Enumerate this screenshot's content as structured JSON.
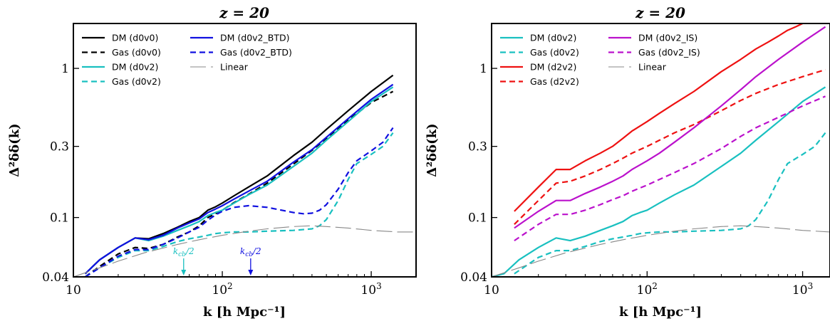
{
  "chart_data": [
    {
      "type": "line",
      "title": "z = 20",
      "xlabel": "k [h Mpc⁻¹]",
      "ylabel": "Δ²δδ(k)",
      "xscale": "log",
      "yscale": "log",
      "xlim": [
        10,
        2000
      ],
      "ylim": [
        0.04,
        2.0
      ],
      "xticks": [
        {
          "value": 10,
          "label": "10"
        },
        {
          "value": 100,
          "label": "10²"
        },
        {
          "value": 1000,
          "label": "10³"
        }
      ],
      "yticks": [
        {
          "value": 0.04,
          "label": "0.04"
        },
        {
          "value": 0.1,
          "label": "0.1"
        },
        {
          "value": 0.3,
          "label": "0.3"
        },
        {
          "value": 1,
          "label": "1"
        }
      ],
      "legend_position": "top-left, two columns",
      "series": [
        {
          "name": "DM (d0v0)",
          "color": "#000000",
          "dash": "solid",
          "x": [
            12,
            15,
            20,
            26,
            32,
            40,
            50,
            60,
            70,
            80,
            90,
            100,
            120,
            150,
            200,
            300,
            400,
            500,
            700,
            1000,
            1400
          ],
          "y": [
            0.042,
            0.052,
            0.063,
            0.073,
            0.072,
            0.078,
            0.086,
            0.094,
            0.1,
            0.112,
            0.118,
            0.125,
            0.14,
            0.16,
            0.19,
            0.26,
            0.32,
            0.39,
            0.52,
            0.7,
            0.9
          ]
        },
        {
          "name": "Gas (d0v0)",
          "color": "#000000",
          "dash": "dashed",
          "x": [
            12,
            15,
            20,
            26,
            32,
            40,
            50,
            60,
            70,
            80,
            90,
            100,
            120,
            150,
            200,
            300,
            400,
            500,
            700,
            1000,
            1400
          ],
          "y": [
            0.04,
            0.047,
            0.057,
            0.063,
            0.062,
            0.066,
            0.074,
            0.08,
            0.088,
            0.1,
            0.106,
            0.112,
            0.126,
            0.143,
            0.17,
            0.228,
            0.282,
            0.34,
            0.45,
            0.59,
            0.7
          ]
        },
        {
          "name": "DM (d0v2)",
          "color": "#19c0c0",
          "dash": "solid",
          "x": [
            12,
            15,
            20,
            26,
            32,
            40,
            50,
            60,
            70,
            80,
            90,
            100,
            120,
            150,
            200,
            300,
            400,
            500,
            700,
            1000,
            1400
          ],
          "y": [
            0.042,
            0.052,
            0.063,
            0.073,
            0.07,
            0.075,
            0.082,
            0.088,
            0.094,
            0.103,
            0.108,
            0.112,
            0.125,
            0.142,
            0.165,
            0.22,
            0.27,
            0.33,
            0.44,
            0.6,
            0.75
          ]
        },
        {
          "name": "Gas (d0v2)",
          "color": "#19c0c0",
          "dash": "dashed",
          "x": [
            12,
            15,
            20,
            26,
            32,
            40,
            50,
            60,
            70,
            80,
            90,
            100,
            120,
            150,
            200,
            300,
            400,
            450,
            500,
            600,
            700,
            800,
            1000,
            1200,
            1400
          ],
          "y": [
            0.04,
            0.046,
            0.054,
            0.06,
            0.06,
            0.064,
            0.069,
            0.072,
            0.074,
            0.076,
            0.078,
            0.079,
            0.08,
            0.08,
            0.081,
            0.082,
            0.084,
            0.088,
            0.097,
            0.13,
            0.18,
            0.23,
            0.265,
            0.3,
            0.37
          ]
        },
        {
          "name": "DM (d0v2_BTD)",
          "color": "#1010e0",
          "dash": "solid",
          "x": [
            12,
            15,
            20,
            26,
            32,
            40,
            50,
            60,
            70,
            80,
            90,
            100,
            120,
            150,
            200,
            300,
            400,
            500,
            700,
            1000,
            1400
          ],
          "y": [
            0.042,
            0.052,
            0.063,
            0.073,
            0.071,
            0.076,
            0.085,
            0.092,
            0.098,
            0.108,
            0.114,
            0.12,
            0.133,
            0.15,
            0.175,
            0.235,
            0.285,
            0.345,
            0.46,
            0.62,
            0.78
          ]
        },
        {
          "name": "Gas (d0v2_BTD)",
          "color": "#1010e0",
          "dash": "dashed",
          "x": [
            12,
            15,
            20,
            26,
            32,
            40,
            50,
            60,
            70,
            80,
            90,
            100,
            120,
            150,
            200,
            250,
            300,
            350,
            400,
            450,
            500,
            600,
            700,
            800,
            1000,
            1200,
            1400
          ],
          "y": [
            0.04,
            0.046,
            0.055,
            0.061,
            0.061,
            0.066,
            0.073,
            0.08,
            0.086,
            0.096,
            0.104,
            0.11,
            0.117,
            0.12,
            0.117,
            0.112,
            0.108,
            0.106,
            0.107,
            0.112,
            0.122,
            0.155,
            0.2,
            0.24,
            0.28,
            0.32,
            0.4
          ]
        },
        {
          "name": "Linear",
          "color": "#888888",
          "dash": "long-dash",
          "x": [
            10,
            15,
            20,
            30,
            50,
            70,
            100,
            150,
            200,
            300,
            400,
            500,
            700,
            1000,
            1500,
            2000
          ],
          "y": [
            0.04,
            0.046,
            0.051,
            0.058,
            0.066,
            0.071,
            0.076,
            0.081,
            0.084,
            0.087,
            0.088,
            0.087,
            0.085,
            0.082,
            0.08,
            0.08
          ]
        }
      ],
      "annotations": [
        {
          "text": "kcb/2",
          "x": 55,
          "color": "#19c0c0",
          "arrow": "down"
        },
        {
          "text": "kcb/2",
          "x": 155,
          "color": "#1010e0",
          "arrow": "down"
        }
      ]
    },
    {
      "type": "line",
      "title": "z = 20",
      "xlabel": "k [h Mpc⁻¹]",
      "ylabel": "Δ²δδ(k)",
      "xscale": "log",
      "yscale": "log",
      "xlim": [
        10,
        1500
      ],
      "ylim": [
        0.04,
        2.0
      ],
      "xticks": [
        {
          "value": 10,
          "label": "10"
        },
        {
          "value": 100,
          "label": "10²"
        },
        {
          "value": 1000,
          "label": "10³"
        }
      ],
      "yticks": [
        {
          "value": 0.04,
          "label": "0.04"
        },
        {
          "value": 0.1,
          "label": "0.1"
        },
        {
          "value": 0.3,
          "label": "0.3"
        },
        {
          "value": 1,
          "label": "1"
        }
      ],
      "legend_position": "top-left, two columns",
      "series": [
        {
          "name": "DM (d0v2)",
          "color": "#19c0c0",
          "dash": "solid",
          "x": [
            10,
            12,
            15,
            20,
            26,
            32,
            40,
            50,
            60,
            70,
            80,
            90,
            100,
            120,
            150,
            200,
            300,
            400,
            500,
            700,
            1000,
            1400
          ],
          "y": [
            0.04,
            0.042,
            0.052,
            0.063,
            0.073,
            0.07,
            0.075,
            0.082,
            0.088,
            0.094,
            0.103,
            0.108,
            0.112,
            0.125,
            0.142,
            0.165,
            0.22,
            0.27,
            0.33,
            0.44,
            0.6,
            0.75
          ]
        },
        {
          "name": "Gas (d0v2)",
          "color": "#19c0c0",
          "dash": "dashed",
          "x": [
            14,
            20,
            26,
            32,
            40,
            50,
            60,
            70,
            80,
            90,
            100,
            120,
            150,
            200,
            300,
            400,
            450,
            500,
            600,
            700,
            800,
            1000,
            1200,
            1400
          ],
          "y": [
            0.042,
            0.054,
            0.06,
            0.06,
            0.064,
            0.069,
            0.072,
            0.074,
            0.076,
            0.078,
            0.079,
            0.08,
            0.08,
            0.081,
            0.082,
            0.084,
            0.088,
            0.097,
            0.13,
            0.18,
            0.23,
            0.265,
            0.3,
            0.37
          ]
        },
        {
          "name": "DM (d2v2)",
          "color": "#ee1111",
          "dash": "solid",
          "x": [
            14,
            20,
            26,
            32,
            40,
            50,
            60,
            70,
            80,
            100,
            120,
            150,
            200,
            300,
            400,
            500,
            600,
            700,
            800,
            900,
            1000
          ],
          "y": [
            0.11,
            0.16,
            0.21,
            0.21,
            0.24,
            0.27,
            0.3,
            0.34,
            0.38,
            0.44,
            0.5,
            0.58,
            0.7,
            0.95,
            1.15,
            1.35,
            1.5,
            1.65,
            1.8,
            1.9,
            2.0
          ]
        },
        {
          "name": "Gas (d2v2)",
          "color": "#ee1111",
          "dash": "dashed",
          "x": [
            14,
            20,
            26,
            32,
            40,
            50,
            60,
            70,
            80,
            100,
            120,
            150,
            200,
            300,
            400,
            500,
            700,
            1000,
            1400
          ],
          "y": [
            0.09,
            0.13,
            0.17,
            0.175,
            0.19,
            0.21,
            0.23,
            0.25,
            0.27,
            0.3,
            0.33,
            0.37,
            0.42,
            0.52,
            0.61,
            0.68,
            0.78,
            0.88,
            0.98
          ]
        },
        {
          "name": "DM (d0v2_IS)",
          "color": "#bb11cc",
          "dash": "solid",
          "x": [
            14,
            20,
            26,
            32,
            40,
            50,
            60,
            70,
            80,
            100,
            120,
            150,
            200,
            300,
            400,
            500,
            700,
            1000,
            1400
          ],
          "y": [
            0.085,
            0.11,
            0.13,
            0.13,
            0.145,
            0.16,
            0.175,
            0.19,
            0.21,
            0.24,
            0.27,
            0.32,
            0.4,
            0.56,
            0.72,
            0.88,
            1.15,
            1.5,
            1.9
          ]
        },
        {
          "name": "Gas (d0v2_IS)",
          "color": "#bb11cc",
          "dash": "dashed",
          "x": [
            14,
            20,
            26,
            32,
            40,
            50,
            60,
            70,
            80,
            100,
            120,
            150,
            200,
            300,
            400,
            500,
            700,
            1000,
            1400
          ],
          "y": [
            0.07,
            0.09,
            0.105,
            0.105,
            0.112,
            0.122,
            0.132,
            0.14,
            0.15,
            0.165,
            0.18,
            0.2,
            0.23,
            0.29,
            0.35,
            0.4,
            0.47,
            0.56,
            0.65
          ]
        },
        {
          "name": "Linear",
          "color": "#888888",
          "dash": "long-dash",
          "x": [
            10,
            15,
            20,
            30,
            50,
            70,
            100,
            150,
            200,
            300,
            400,
            500,
            700,
            1000,
            1500
          ],
          "y": [
            0.04,
            0.046,
            0.051,
            0.058,
            0.066,
            0.071,
            0.076,
            0.081,
            0.084,
            0.087,
            0.088,
            0.087,
            0.085,
            0.082,
            0.08
          ]
        }
      ]
    }
  ]
}
